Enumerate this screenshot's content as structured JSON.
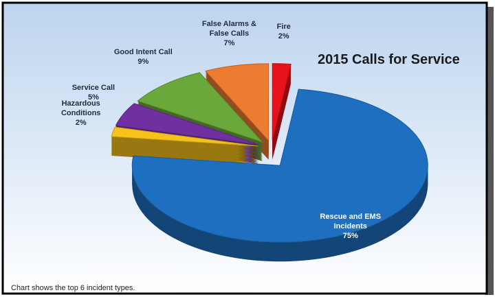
{
  "chart_data": {
    "type": "pie",
    "title": "2015 Calls for Service",
    "categories": [
      "Fire",
      "Rescue and EMS Incidents",
      "Hazardous Conditions",
      "Service Call",
      "Good Intent Call",
      "False Alarms & False Calls"
    ],
    "values": [
      2,
      75,
      2,
      5,
      9,
      7
    ],
    "value_labels": [
      "2%",
      "75%",
      "2%",
      "5%",
      "9%",
      "7%"
    ],
    "colors": [
      "#e8121a",
      "#1f6fc0",
      "#f6c21b",
      "#7030a0",
      "#6aa83b",
      "#ec7c30"
    ],
    "annotation": "Chart shows the top 6 incident types."
  }
}
